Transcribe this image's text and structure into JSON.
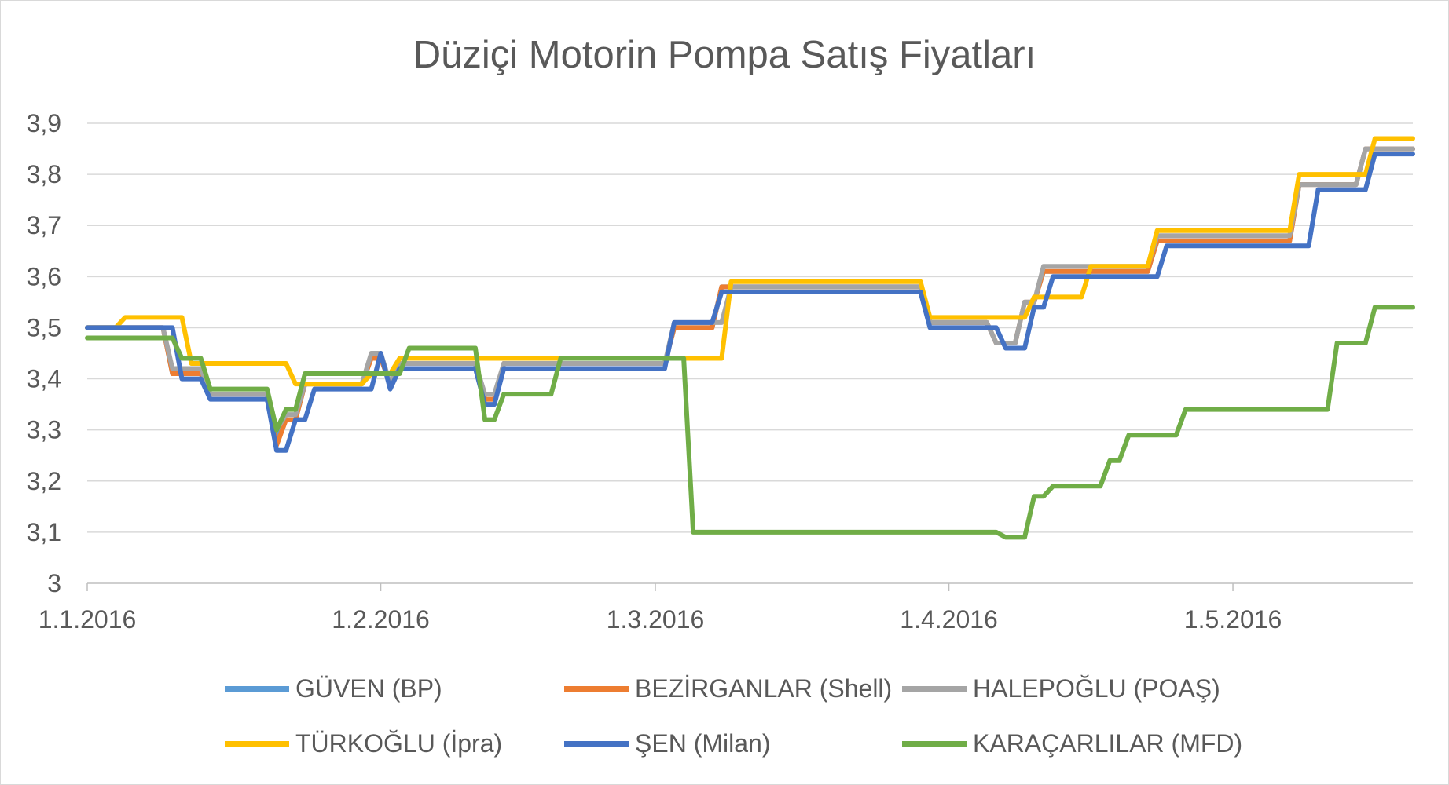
{
  "chart_data": {
    "type": "line",
    "title": "Düziçi Motorin Pompa Satış Fiyatları",
    "xlabel": "",
    "ylabel": "",
    "x_range": [
      "1.1.2016",
      "20.5.2016"
    ],
    "ylim": [
      3,
      3.9
    ],
    "y_ticks": [
      "3",
      "3,1",
      "3,2",
      "3,3",
      "3,4",
      "3,5",
      "3,6",
      "3,7",
      "3,8",
      "3,9"
    ],
    "y_tick_values": [
      3,
      3.1,
      3.2,
      3.3,
      3.4,
      3.5,
      3.6,
      3.7,
      3.8,
      3.9
    ],
    "x_ticks": [
      "1.1.2016",
      "1.2.2016",
      "1.3.2016",
      "1.4.2016",
      "1.5.2016"
    ],
    "grid": true,
    "legend_position": "bottom",
    "series": [
      {
        "name": "GÜVEN (BP)",
        "color": "#5b9bd5",
        "points": [
          [
            "1.1.2016",
            3.5
          ],
          [
            "9.1.2016",
            3.5
          ],
          [
            "10.1.2016",
            3.41
          ],
          [
            "13.1.2016",
            3.41
          ],
          [
            "14.1.2016",
            3.37
          ],
          [
            "20.1.2016",
            3.37
          ],
          [
            "21.1.2016",
            3.29
          ],
          [
            "22.1.2016",
            3.32
          ],
          [
            "23.1.2016",
            3.32
          ],
          [
            "24.1.2016",
            3.39
          ],
          [
            "30.1.2016",
            3.39
          ],
          [
            "31.1.2016",
            3.44
          ],
          [
            "1.2.2016",
            3.44
          ],
          [
            "2.2.2016",
            3.39
          ],
          [
            "3.2.2016",
            3.43
          ],
          [
            "11.2.2016",
            3.43
          ],
          [
            "12.2.2016",
            3.36
          ],
          [
            "13.2.2016",
            3.36
          ],
          [
            "14.2.2016",
            3.43
          ],
          [
            "2.3.2016",
            3.43
          ],
          [
            "3.3.2016",
            3.5
          ],
          [
            "7.3.2016",
            3.5
          ],
          [
            "8.3.2016",
            3.58
          ],
          [
            "29.3.2016",
            3.58
          ],
          [
            "30.3.2016",
            3.51
          ],
          [
            "5.4.2016",
            3.51
          ],
          [
            "6.4.2016",
            3.47
          ],
          [
            "8.4.2016",
            3.47
          ],
          [
            "9.4.2016",
            3.55
          ],
          [
            "10.4.2016",
            3.55
          ],
          [
            "11.4.2016",
            3.61
          ],
          [
            "22.4.2016",
            3.61
          ],
          [
            "23.4.2016",
            3.67
          ],
          [
            "7.5.2016",
            3.67
          ],
          [
            "8.5.2016",
            3.78
          ],
          [
            "14.5.2016",
            3.78
          ],
          [
            "15.5.2016",
            3.85
          ],
          [
            "20.5.2016",
            3.85
          ]
        ]
      },
      {
        "name": "BEZİRGANLAR (Shell)",
        "color": "#ed7d31",
        "points": [
          [
            "1.1.2016",
            3.5
          ],
          [
            "9.1.2016",
            3.5
          ],
          [
            "10.1.2016",
            3.41
          ],
          [
            "13.1.2016",
            3.41
          ],
          [
            "14.1.2016",
            3.37
          ],
          [
            "20.1.2016",
            3.37
          ],
          [
            "21.1.2016",
            3.27
          ],
          [
            "22.1.2016",
            3.32
          ],
          [
            "23.1.2016",
            3.32
          ],
          [
            "24.1.2016",
            3.39
          ],
          [
            "30.1.2016",
            3.39
          ],
          [
            "31.1.2016",
            3.44
          ],
          [
            "1.2.2016",
            3.44
          ],
          [
            "2.2.2016",
            3.39
          ],
          [
            "3.2.2016",
            3.43
          ],
          [
            "11.2.2016",
            3.43
          ],
          [
            "12.2.2016",
            3.36
          ],
          [
            "13.2.2016",
            3.36
          ],
          [
            "14.2.2016",
            3.43
          ],
          [
            "2.3.2016",
            3.43
          ],
          [
            "3.3.2016",
            3.5
          ],
          [
            "7.3.2016",
            3.5
          ],
          [
            "8.3.2016",
            3.58
          ],
          [
            "29.3.2016",
            3.58
          ],
          [
            "30.3.2016",
            3.51
          ],
          [
            "5.4.2016",
            3.51
          ],
          [
            "6.4.2016",
            3.47
          ],
          [
            "8.4.2016",
            3.47
          ],
          [
            "9.4.2016",
            3.55
          ],
          [
            "10.4.2016",
            3.55
          ],
          [
            "11.4.2016",
            3.61
          ],
          [
            "22.4.2016",
            3.61
          ],
          [
            "23.4.2016",
            3.67
          ],
          [
            "7.5.2016",
            3.67
          ],
          [
            "8.5.2016",
            3.78
          ],
          [
            "14.5.2016",
            3.78
          ],
          [
            "15.5.2016",
            3.85
          ],
          [
            "20.5.2016",
            3.85
          ]
        ]
      },
      {
        "name": "HALEPOĞLU (POAŞ)",
        "color": "#a5a5a5",
        "points": [
          [
            "1.1.2016",
            3.5
          ],
          [
            "9.1.2016",
            3.5
          ],
          [
            "10.1.2016",
            3.42
          ],
          [
            "13.1.2016",
            3.42
          ],
          [
            "14.1.2016",
            3.37
          ],
          [
            "20.1.2016",
            3.37
          ],
          [
            "21.1.2016",
            3.3
          ],
          [
            "22.1.2016",
            3.33
          ],
          [
            "23.1.2016",
            3.33
          ],
          [
            "24.1.2016",
            3.39
          ],
          [
            "30.1.2016",
            3.39
          ],
          [
            "31.1.2016",
            3.45
          ],
          [
            "1.2.2016",
            3.45
          ],
          [
            "2.2.2016",
            3.39
          ],
          [
            "3.2.2016",
            3.43
          ],
          [
            "11.2.2016",
            3.43
          ],
          [
            "12.2.2016",
            3.37
          ],
          [
            "13.2.2016",
            3.37
          ],
          [
            "14.2.2016",
            3.43
          ],
          [
            "2.3.2016",
            3.43
          ],
          [
            "3.3.2016",
            3.51
          ],
          [
            "8.3.2016",
            3.51
          ],
          [
            "9.3.2016",
            3.58
          ],
          [
            "29.3.2016",
            3.58
          ],
          [
            "30.3.2016",
            3.51
          ],
          [
            "5.4.2016",
            3.51
          ],
          [
            "6.4.2016",
            3.47
          ],
          [
            "8.4.2016",
            3.47
          ],
          [
            "9.4.2016",
            3.55
          ],
          [
            "10.4.2016",
            3.55
          ],
          [
            "11.4.2016",
            3.62
          ],
          [
            "22.4.2016",
            3.62
          ],
          [
            "23.4.2016",
            3.68
          ],
          [
            "7.5.2016",
            3.68
          ],
          [
            "8.5.2016",
            3.78
          ],
          [
            "14.5.2016",
            3.78
          ],
          [
            "15.5.2016",
            3.85
          ],
          [
            "20.5.2016",
            3.85
          ]
        ]
      },
      {
        "name": "TÜRKOĞLU (İpra)",
        "color": "#ffc000",
        "points": [
          [
            "1.1.2016",
            3.5
          ],
          [
            "4.1.2016",
            3.5
          ],
          [
            "5.1.2016",
            3.52
          ],
          [
            "11.1.2016",
            3.52
          ],
          [
            "12.1.2016",
            3.43
          ],
          [
            "22.1.2016",
            3.43
          ],
          [
            "23.1.2016",
            3.39
          ],
          [
            "30.1.2016",
            3.39
          ],
          [
            "31.1.2016",
            3.41
          ],
          [
            "2.2.2016",
            3.41
          ],
          [
            "3.2.2016",
            3.44
          ],
          [
            "2.3.2016",
            3.44
          ],
          [
            "3.3.2016",
            3.44
          ],
          [
            "8.3.2016",
            3.44
          ],
          [
            "9.3.2016",
            3.59
          ],
          [
            "29.3.2016",
            3.59
          ],
          [
            "30.3.2016",
            3.52
          ],
          [
            "9.4.2016",
            3.52
          ],
          [
            "10.4.2016",
            3.56
          ],
          [
            "15.4.2016",
            3.56
          ],
          [
            "16.4.2016",
            3.62
          ],
          [
            "22.4.2016",
            3.62
          ],
          [
            "23.4.2016",
            3.69
          ],
          [
            "7.5.2016",
            3.69
          ],
          [
            "8.5.2016",
            3.8
          ],
          [
            "15.5.2016",
            3.8
          ],
          [
            "16.5.2016",
            3.87
          ],
          [
            "20.5.2016",
            3.87
          ]
        ]
      },
      {
        "name": "ŞEN (Milan)",
        "color": "#4472c4",
        "points": [
          [
            "1.1.2016",
            3.5
          ],
          [
            "10.1.2016",
            3.5
          ],
          [
            "11.1.2016",
            3.4
          ],
          [
            "13.1.2016",
            3.4
          ],
          [
            "14.1.2016",
            3.36
          ],
          [
            "20.1.2016",
            3.36
          ],
          [
            "21.1.2016",
            3.26
          ],
          [
            "22.1.2016",
            3.26
          ],
          [
            "23.1.2016",
            3.32
          ],
          [
            "24.1.2016",
            3.32
          ],
          [
            "25.1.2016",
            3.38
          ],
          [
            "31.1.2016",
            3.38
          ],
          [
            "1.2.2016",
            3.45
          ],
          [
            "2.2.2016",
            3.38
          ],
          [
            "3.2.2016",
            3.42
          ],
          [
            "11.2.2016",
            3.42
          ],
          [
            "12.2.2016",
            3.35
          ],
          [
            "13.2.2016",
            3.35
          ],
          [
            "14.2.2016",
            3.42
          ],
          [
            "2.3.2016",
            3.42
          ],
          [
            "3.3.2016",
            3.51
          ],
          [
            "7.3.2016",
            3.51
          ],
          [
            "8.3.2016",
            3.57
          ],
          [
            "29.3.2016",
            3.57
          ],
          [
            "30.3.2016",
            3.5
          ],
          [
            "6.4.2016",
            3.5
          ],
          [
            "7.4.2016",
            3.46
          ],
          [
            "9.4.2016",
            3.46
          ],
          [
            "10.4.2016",
            3.54
          ],
          [
            "11.4.2016",
            3.54
          ],
          [
            "12.4.2016",
            3.6
          ],
          [
            "23.4.2016",
            3.6
          ],
          [
            "24.4.2016",
            3.66
          ],
          [
            "9.5.2016",
            3.66
          ],
          [
            "10.5.2016",
            3.77
          ],
          [
            "15.5.2016",
            3.77
          ],
          [
            "16.5.2016",
            3.84
          ],
          [
            "20.5.2016",
            3.84
          ]
        ]
      },
      {
        "name": "KARAÇARLILAR (MFD)",
        "color": "#70ad47",
        "points": [
          [
            "1.1.2016",
            3.48
          ],
          [
            "10.1.2016",
            3.48
          ],
          [
            "11.1.2016",
            3.44
          ],
          [
            "13.1.2016",
            3.44
          ],
          [
            "14.1.2016",
            3.38
          ],
          [
            "20.1.2016",
            3.38
          ],
          [
            "21.1.2016",
            3.3
          ],
          [
            "22.1.2016",
            3.34
          ],
          [
            "23.1.2016",
            3.34
          ],
          [
            "24.1.2016",
            3.41
          ],
          [
            "3.2.2016",
            3.41
          ],
          [
            "4.2.2016",
            3.46
          ],
          [
            "11.2.2016",
            3.46
          ],
          [
            "12.2.2016",
            3.32
          ],
          [
            "13.2.2016",
            3.32
          ],
          [
            "14.2.2016",
            3.37
          ],
          [
            "19.2.2016",
            3.37
          ],
          [
            "20.2.2016",
            3.44
          ],
          [
            "4.3.2016",
            3.44
          ],
          [
            "5.3.2016",
            3.1
          ],
          [
            "6.4.2016",
            3.1
          ],
          [
            "7.4.2016",
            3.09
          ],
          [
            "9.4.2016",
            3.09
          ],
          [
            "10.4.2016",
            3.17
          ],
          [
            "11.4.2016",
            3.17
          ],
          [
            "12.4.2016",
            3.19
          ],
          [
            "17.4.2016",
            3.19
          ],
          [
            "18.4.2016",
            3.24
          ],
          [
            "19.4.2016",
            3.24
          ],
          [
            "20.4.2016",
            3.29
          ],
          [
            "25.4.2016",
            3.29
          ],
          [
            "26.4.2016",
            3.34
          ],
          [
            "11.5.2016",
            3.34
          ],
          [
            "12.5.2016",
            3.47
          ],
          [
            "15.5.2016",
            3.47
          ],
          [
            "16.5.2016",
            3.54
          ],
          [
            "20.5.2016",
            3.54
          ]
        ]
      }
    ]
  }
}
